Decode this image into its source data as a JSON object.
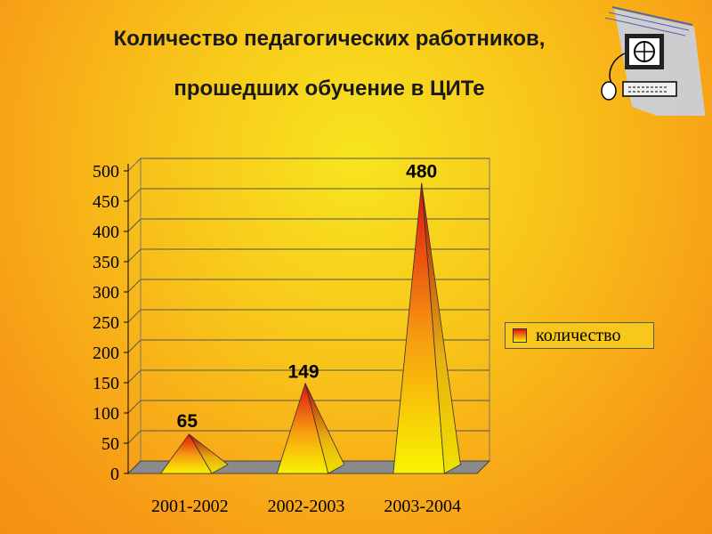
{
  "title_line1": "Количество педагогических работников,",
  "title_line2": "прошедших обучение в ЦИТе",
  "chart_data": {
    "type": "bar",
    "bar_shape": "3d-pyramid",
    "categories": [
      "2001-2002",
      "2002-2003",
      "2003-2004"
    ],
    "series": [
      {
        "name": "количество",
        "values": [
          65,
          149,
          480
        ]
      }
    ],
    "data_labels": [
      "65",
      "149",
      "480"
    ],
    "ylim": [
      0,
      500
    ],
    "y_ticks": [
      0,
      50,
      100,
      150,
      200,
      250,
      300,
      350,
      400,
      450,
      500
    ],
    "grid": true,
    "legend_position": "right",
    "colors": {
      "bar_top": "#e01010",
      "bar_bottom": "#f8f000"
    }
  }
}
